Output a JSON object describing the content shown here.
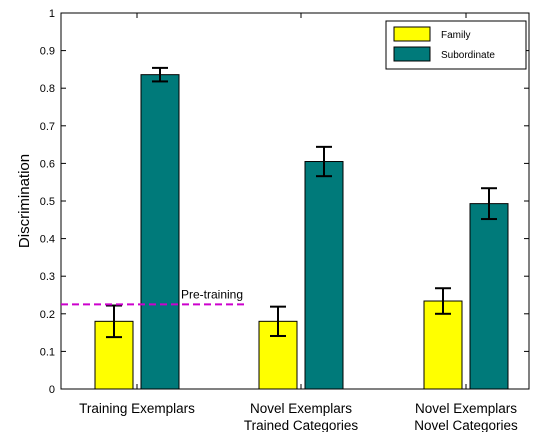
{
  "chart_data": {
    "type": "bar",
    "title": "",
    "xlabel": "",
    "ylabel": "Discrimination",
    "ylim": [
      0,
      1
    ],
    "yticks": [
      "0",
      "0.1",
      "0.2",
      "0.3",
      "0.4",
      "0.5",
      "0.6",
      "0.7",
      "0.8",
      "0.9",
      "1"
    ],
    "categories": [
      "Training Exemplars",
      "Novel Exemplars\nTrained Categories",
      "Novel Exemplars\nNovel Categories"
    ],
    "series": [
      {
        "name": "Family",
        "color": "#ffff00",
        "values": [
          0.18,
          0.18,
          0.234
        ],
        "errors": [
          0.042,
          0.039,
          0.034
        ]
      },
      {
        "name": "Subordinate",
        "color": "#007a7a",
        "values": [
          0.836,
          0.605,
          0.493
        ],
        "errors": [
          0.018,
          0.039,
          0.041
        ]
      }
    ],
    "reference_line": {
      "label": "Pre-training",
      "value": 0.225,
      "color": "#cc00cc",
      "style": "dashed"
    },
    "legend_position": "top-right",
    "grid": false
  }
}
